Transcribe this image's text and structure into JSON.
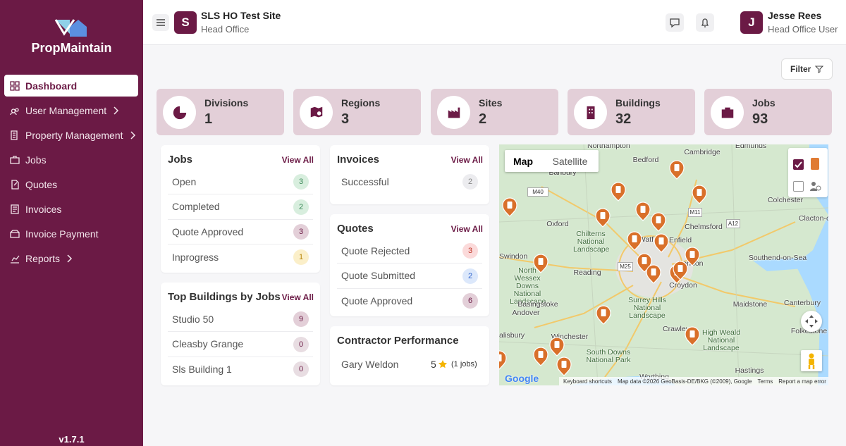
{
  "sidebar": {
    "brand": "PropMaintain",
    "version": "v1.7.1",
    "nav": [
      {
        "label": "Dashboard"
      },
      {
        "label": "User Management"
      },
      {
        "label": "Property Management"
      },
      {
        "label": "Jobs"
      },
      {
        "label": "Quotes"
      },
      {
        "label": "Invoices"
      },
      {
        "label": "Invoice Payment"
      },
      {
        "label": "Reports"
      }
    ]
  },
  "header": {
    "site_initial": "S",
    "site_name": "SLS HO Test Site",
    "site_type": "Head Office",
    "user_initial": "J",
    "user_name": "Jesse Rees",
    "user_role": "Head Office User"
  },
  "filter": "Filter",
  "stats": [
    {
      "label": "Divisions",
      "value": 1
    },
    {
      "label": "Regions",
      "value": 3
    },
    {
      "label": "Sites",
      "value": 2
    },
    {
      "label": "Buildings",
      "value": 32
    },
    {
      "label": "Jobs",
      "value": 93
    }
  ],
  "jobs": {
    "title": "Jobs",
    "link": "View All",
    "rows": [
      {
        "label": "Open",
        "count": 3
      },
      {
        "label": "Completed",
        "count": 2
      },
      {
        "label": "Quote Approved",
        "count": 3
      },
      {
        "label": "Inprogress",
        "count": 1
      }
    ]
  },
  "invoices": {
    "title": "Invoices",
    "link": "View All",
    "rows": [
      {
        "label": "Successful",
        "count": 2
      }
    ]
  },
  "quotes": {
    "title": "Quotes",
    "link": "View All",
    "rows": [
      {
        "label": "Quote Rejected",
        "count": 3
      },
      {
        "label": "Quote Submitted",
        "count": 2
      },
      {
        "label": "Quote Approved",
        "count": 6
      }
    ]
  },
  "top_buildings": {
    "title": "Top Buildings by Jobs",
    "link": "View All",
    "rows": [
      {
        "label": "Studio 50",
        "count": 9
      },
      {
        "label": "Cleasby Grange",
        "count": 0
      },
      {
        "label": "Sls Building 1",
        "count": 0
      }
    ]
  },
  "contractor_performance": {
    "title": "Contractor Performance",
    "rows": [
      {
        "name": "Gary Weldon",
        "rating": 5,
        "jobs": "(1 jobs)"
      }
    ]
  },
  "map": {
    "tabs": [
      "Map",
      "Satellite"
    ],
    "labels": [
      "Northampton",
      "Cambridge",
      "Edmunds",
      "Bedford",
      "Banbury",
      "Colchester",
      "Oxford",
      "Chelmsford",
      "Clacton-on-",
      "Chilterns National Landscape",
      "Enfield",
      "Swindon",
      "Watford",
      "London",
      "Southend-on-Sea",
      "Reading",
      "Croydon",
      "North Wessex Downs National Landscape",
      "Basingstoke",
      "Surrey Hills National Landscape",
      "Maidstone",
      "Canterbury",
      "Andover",
      "Crawley",
      "Folkestone",
      "High Weald National Landscape",
      "Winchester",
      "alisbury",
      "South Downs National Park",
      "Hastings",
      "Worthing",
      "M40",
      "M11",
      "A12",
      "M25"
    ],
    "footer": [
      "Google",
      "Keyboard shortcuts",
      "Map data ©2026 GeoBasis-DE/BKG (©2009), Google",
      "Terms",
      "Report a map error"
    ]
  }
}
